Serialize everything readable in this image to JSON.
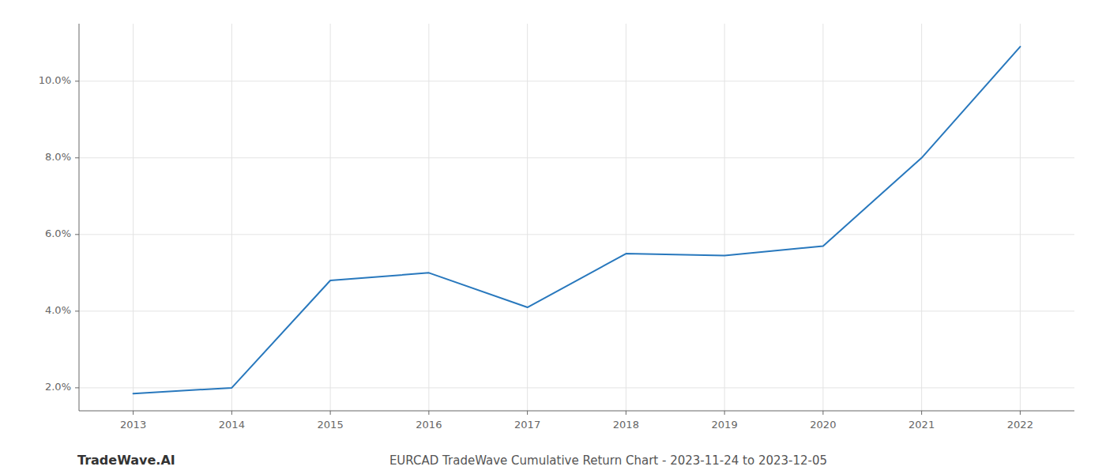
{
  "chart_data": {
    "type": "line",
    "title": "EURCAD TradeWave Cumulative Return Chart - 2023-11-24 to 2023-12-05",
    "annotations": [
      "TradeWave.AI"
    ],
    "x": [
      2013,
      2014,
      2015,
      2016,
      2017,
      2018,
      2019,
      2020,
      2021,
      2022
    ],
    "values": [
      1.85,
      2.0,
      4.8,
      5.0,
      4.1,
      5.5,
      5.45,
      5.7,
      8.0,
      10.9
    ],
    "color": "#2878bd",
    "xlim": [
      2012.45,
      2022.55
    ],
    "xticks": [
      2013,
      2014,
      2015,
      2016,
      2017,
      2018,
      2019,
      2020,
      2021,
      2022
    ],
    "ylim": [
      1.4,
      11.5
    ],
    "yticks": [
      {
        "value": 2.0,
        "label": "2.0%"
      },
      {
        "value": 4.0,
        "label": "4.0%"
      },
      {
        "value": 6.0,
        "label": "6.0%"
      },
      {
        "value": 8.0,
        "label": "8.0%"
      },
      {
        "value": 10.0,
        "label": "10.0%"
      }
    ],
    "grid": true
  }
}
